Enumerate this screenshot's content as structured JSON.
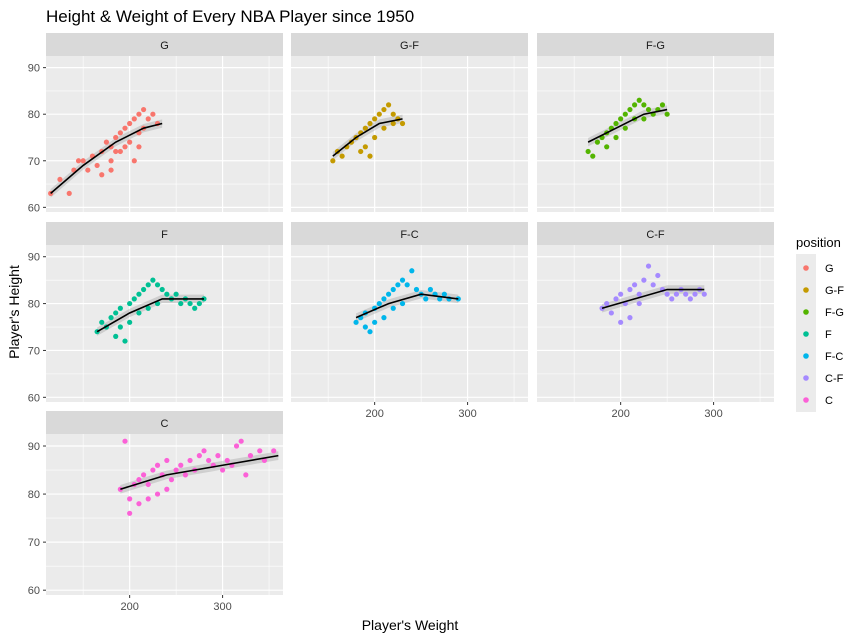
{
  "chart_data": {
    "type": "scatter",
    "title": "Height & Weight of Every NBA Player since 1950",
    "xlabel": "Player's Weight",
    "ylabel": "Player's Height",
    "xlim": [
      110,
      365
    ],
    "ylim": [
      59,
      92.5
    ],
    "x_ticks": [
      200,
      300
    ],
    "y_ticks": [
      60,
      70,
      80,
      90
    ],
    "grid": true,
    "legend": {
      "title": "position",
      "placement": "right",
      "entries": [
        {
          "label": "G",
          "color": "#F8766D"
        },
        {
          "label": "G-F",
          "color": "#C49A00"
        },
        {
          "label": "F-G",
          "color": "#53B400"
        },
        {
          "label": "F",
          "color": "#00C094"
        },
        {
          "label": "F-C",
          "color": "#00B6EB"
        },
        {
          "label": "C-F",
          "color": "#A58AFF"
        },
        {
          "label": "C",
          "color": "#FB61D7"
        }
      ]
    },
    "facets": [
      {
        "name": "G",
        "color": "#F8766D",
        "points": [
          [
            115,
            63
          ],
          [
            125,
            66
          ],
          [
            135,
            63
          ],
          [
            140,
            68
          ],
          [
            145,
            70
          ],
          [
            150,
            70
          ],
          [
            155,
            68
          ],
          [
            160,
            71
          ],
          [
            165,
            69
          ],
          [
            170,
            72
          ],
          [
            170,
            67
          ],
          [
            175,
            74
          ],
          [
            180,
            73
          ],
          [
            180,
            68
          ],
          [
            185,
            75
          ],
          [
            190,
            76
          ],
          [
            190,
            72
          ],
          [
            195,
            77
          ],
          [
            200,
            78
          ],
          [
            200,
            74
          ],
          [
            205,
            79
          ],
          [
            205,
            70
          ],
          [
            210,
            80
          ],
          [
            210,
            76
          ],
          [
            215,
            81
          ],
          [
            215,
            77
          ],
          [
            220,
            79
          ],
          [
            225,
            80
          ],
          [
            230,
            78
          ],
          [
            180,
            70
          ],
          [
            185,
            72
          ],
          [
            195,
            73
          ],
          [
            210,
            73
          ]
        ],
        "smooth": [
          [
            115,
            63
          ],
          [
            150,
            69
          ],
          [
            185,
            74
          ],
          [
            215,
            77
          ],
          [
            235,
            78
          ]
        ]
      },
      {
        "name": "G-F",
        "color": "#C49A00",
        "points": [
          [
            155,
            70
          ],
          [
            160,
            72
          ],
          [
            165,
            71
          ],
          [
            170,
            73
          ],
          [
            175,
            74
          ],
          [
            180,
            75
          ],
          [
            185,
            76
          ],
          [
            190,
            77
          ],
          [
            195,
            78
          ],
          [
            200,
            79
          ],
          [
            205,
            80
          ],
          [
            210,
            81
          ],
          [
            215,
            82
          ],
          [
            220,
            80
          ],
          [
            225,
            79
          ],
          [
            230,
            78
          ],
          [
            185,
            72
          ],
          [
            190,
            73
          ],
          [
            200,
            75
          ],
          [
            210,
            77
          ],
          [
            220,
            78
          ],
          [
            195,
            71
          ]
        ],
        "smooth": [
          [
            155,
            71
          ],
          [
            180,
            75
          ],
          [
            205,
            78
          ],
          [
            230,
            79
          ]
        ]
      },
      {
        "name": "F-G",
        "color": "#53B400",
        "points": [
          [
            165,
            72
          ],
          [
            170,
            71
          ],
          [
            175,
            74
          ],
          [
            180,
            75
          ],
          [
            185,
            76
          ],
          [
            190,
            77
          ],
          [
            195,
            78
          ],
          [
            200,
            79
          ],
          [
            205,
            80
          ],
          [
            210,
            81
          ],
          [
            215,
            82
          ],
          [
            220,
            83
          ],
          [
            225,
            82
          ],
          [
            230,
            81
          ],
          [
            235,
            80
          ],
          [
            240,
            81
          ],
          [
            245,
            82
          ],
          [
            250,
            80
          ],
          [
            185,
            73
          ],
          [
            195,
            75
          ],
          [
            205,
            77
          ],
          [
            215,
            79
          ],
          [
            225,
            79
          ]
        ],
        "smooth": [
          [
            165,
            74
          ],
          [
            195,
            77
          ],
          [
            225,
            80
          ],
          [
            250,
            81
          ]
        ]
      },
      {
        "name": "F",
        "color": "#00C094",
        "points": [
          [
            165,
            74
          ],
          [
            170,
            76
          ],
          [
            175,
            75
          ],
          [
            180,
            77
          ],
          [
            185,
            78
          ],
          [
            190,
            79
          ],
          [
            195,
            72
          ],
          [
            200,
            80
          ],
          [
            205,
            81
          ],
          [
            210,
            82
          ],
          [
            215,
            83
          ],
          [
            220,
            84
          ],
          [
            225,
            85
          ],
          [
            230,
            84
          ],
          [
            235,
            83
          ],
          [
            240,
            82
          ],
          [
            245,
            81
          ],
          [
            250,
            82
          ],
          [
            255,
            80
          ],
          [
            260,
            81
          ],
          [
            265,
            80
          ],
          [
            270,
            79
          ],
          [
            275,
            80
          ],
          [
            280,
            81
          ],
          [
            200,
            76
          ],
          [
            210,
            78
          ],
          [
            220,
            79
          ],
          [
            230,
            80
          ],
          [
            190,
            75
          ],
          [
            185,
            73
          ]
        ],
        "smooth": [
          [
            165,
            74
          ],
          [
            200,
            78
          ],
          [
            235,
            81
          ],
          [
            280,
            81
          ]
        ]
      },
      {
        "name": "F-C",
        "color": "#00B6EB",
        "points": [
          [
            180,
            76
          ],
          [
            185,
            77
          ],
          [
            190,
            78
          ],
          [
            195,
            74
          ],
          [
            200,
            79
          ],
          [
            205,
            80
          ],
          [
            210,
            81
          ],
          [
            215,
            82
          ],
          [
            220,
            83
          ],
          [
            225,
            84
          ],
          [
            230,
            85
          ],
          [
            235,
            84
          ],
          [
            240,
            87
          ],
          [
            245,
            83
          ],
          [
            250,
            82
          ],
          [
            255,
            81
          ],
          [
            260,
            83
          ],
          [
            265,
            82
          ],
          [
            270,
            81
          ],
          [
            275,
            82
          ],
          [
            280,
            81
          ],
          [
            290,
            81
          ],
          [
            210,
            77
          ],
          [
            220,
            79
          ],
          [
            230,
            80
          ],
          [
            200,
            76
          ],
          [
            190,
            75
          ]
        ],
        "smooth": [
          [
            180,
            77
          ],
          [
            215,
            80
          ],
          [
            250,
            82
          ],
          [
            290,
            81
          ]
        ]
      },
      {
        "name": "C-F",
        "color": "#A58AFF",
        "points": [
          [
            180,
            79
          ],
          [
            185,
            80
          ],
          [
            190,
            78
          ],
          [
            195,
            81
          ],
          [
            200,
            82
          ],
          [
            205,
            80
          ],
          [
            210,
            83
          ],
          [
            215,
            84
          ],
          [
            220,
            82
          ],
          [
            225,
            85
          ],
          [
            230,
            88
          ],
          [
            235,
            84
          ],
          [
            240,
            86
          ],
          [
            245,
            83
          ],
          [
            250,
            82
          ],
          [
            255,
            81
          ],
          [
            260,
            82
          ],
          [
            265,
            83
          ],
          [
            270,
            82
          ],
          [
            275,
            81
          ],
          [
            280,
            82
          ],
          [
            285,
            83
          ],
          [
            290,
            82
          ],
          [
            210,
            77
          ],
          [
            220,
            80
          ],
          [
            200,
            76
          ]
        ],
        "smooth": [
          [
            180,
            79
          ],
          [
            215,
            81
          ],
          [
            250,
            83
          ],
          [
            290,
            83
          ]
        ]
      },
      {
        "name": "C",
        "color": "#FB61D7",
        "points": [
          [
            190,
            81
          ],
          [
            195,
            91
          ],
          [
            200,
            76
          ],
          [
            205,
            82
          ],
          [
            210,
            83
          ],
          [
            215,
            84
          ],
          [
            220,
            82
          ],
          [
            225,
            85
          ],
          [
            230,
            86
          ],
          [
            235,
            84
          ],
          [
            240,
            87
          ],
          [
            245,
            83
          ],
          [
            250,
            85
          ],
          [
            255,
            86
          ],
          [
            260,
            84
          ],
          [
            265,
            87
          ],
          [
            270,
            85
          ],
          [
            275,
            88
          ],
          [
            280,
            89
          ],
          [
            285,
            87
          ],
          [
            290,
            86
          ],
          [
            295,
            88
          ],
          [
            300,
            85
          ],
          [
            305,
            87
          ],
          [
            310,
            86
          ],
          [
            315,
            90
          ],
          [
            320,
            91
          ],
          [
            325,
            84
          ],
          [
            330,
            88
          ],
          [
            340,
            89
          ],
          [
            345,
            87
          ],
          [
            355,
            89
          ],
          [
            210,
            78
          ],
          [
            220,
            79
          ],
          [
            230,
            80
          ],
          [
            240,
            81
          ],
          [
            200,
            79
          ]
        ],
        "smooth": [
          [
            190,
            81
          ],
          [
            240,
            84
          ],
          [
            300,
            86
          ],
          [
            360,
            88
          ]
        ]
      }
    ]
  }
}
